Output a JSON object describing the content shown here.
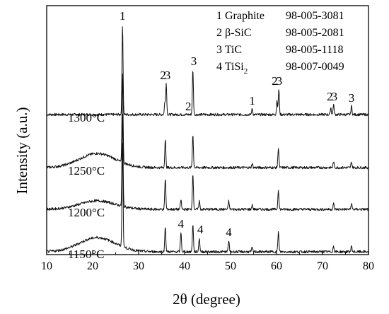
{
  "chart_data": {
    "type": "line",
    "xlabel": "2θ (degree)",
    "ylabel": "Intensity (a.u.)",
    "xlim": [
      10,
      80
    ],
    "xticks": [
      10,
      20,
      30,
      40,
      50,
      60,
      70,
      80
    ],
    "y_ticks_shown": false,
    "grid": false,
    "legend_position": "top-right",
    "legend": [
      {
        "id": "1",
        "phase": "Graphite",
        "phase_sub": "",
        "card": "98-005-3081"
      },
      {
        "id": "2",
        "phase": "β-SiC",
        "phase_sub": "",
        "card": "98-005-2081"
      },
      {
        "id": "3",
        "phase": "TiC",
        "phase_sub": "",
        "card": "98-005-1118"
      },
      {
        "id": "4",
        "phase": "TiSi",
        "phase_sub": "2",
        "card": "98-007-0049"
      }
    ],
    "series": [
      {
        "name": "1300°C",
        "hump": 0.0,
        "peaks": [
          [
            26.5,
            32
          ],
          [
            35.7,
            4
          ],
          [
            36.0,
            11
          ],
          [
            41.8,
            16
          ],
          [
            54.7,
            2
          ],
          [
            60.1,
            5
          ],
          [
            60.5,
            9
          ],
          [
            71.8,
            2.5
          ],
          [
            72.4,
            3.5
          ],
          [
            76.3,
            3
          ]
        ],
        "labels": [
          {
            "text": "1",
            "x": 26.5
          },
          {
            "text": "2",
            "x": 35.3
          },
          {
            "text": "3",
            "x": 36.3
          },
          {
            "text": "2",
            "x": 40.8
          },
          {
            "text": "3",
            "x": 42.0
          },
          {
            "text": "1",
            "x": 54.7
          },
          {
            "text": "2",
            "x": 59.6
          },
          {
            "text": "3",
            "x": 60.6
          },
          {
            "text": "2",
            "x": 71.6
          },
          {
            "text": "3",
            "x": 72.6
          },
          {
            "text": "3",
            "x": 76.3
          }
        ]
      },
      {
        "name": "1250°C",
        "hump": 5.0,
        "peaks": [
          [
            26.5,
            32
          ],
          [
            35.8,
            10
          ],
          [
            41.8,
            12
          ],
          [
            54.7,
            1.5
          ],
          [
            60.4,
            7
          ],
          [
            72.4,
            2
          ],
          [
            76.3,
            2
          ]
        ],
        "labels": []
      },
      {
        "name": "1200°C",
        "hump": 3.0,
        "peaks": [
          [
            26.5,
            33
          ],
          [
            35.8,
            11
          ],
          [
            39.2,
            3.5
          ],
          [
            41.8,
            13
          ],
          [
            43.2,
            3
          ],
          [
            49.6,
            3
          ],
          [
            54.7,
            1.5
          ],
          [
            60.4,
            7
          ],
          [
            72.4,
            2
          ],
          [
            76.3,
            2
          ]
        ],
        "labels": []
      },
      {
        "name": "1150°C",
        "hump": 5.0,
        "peaks": [
          [
            26.5,
            37
          ],
          [
            35.8,
            9
          ],
          [
            39.2,
            7
          ],
          [
            41.8,
            10
          ],
          [
            43.2,
            5
          ],
          [
            49.6,
            4
          ],
          [
            54.7,
            1.5
          ],
          [
            60.4,
            7
          ],
          [
            72.4,
            2
          ],
          [
            76.3,
            2
          ]
        ],
        "labels": [
          {
            "text": "4",
            "x": 39.2
          },
          {
            "text": "4",
            "x": 43.4
          },
          {
            "text": "4",
            "x": 49.6
          }
        ]
      }
    ]
  }
}
